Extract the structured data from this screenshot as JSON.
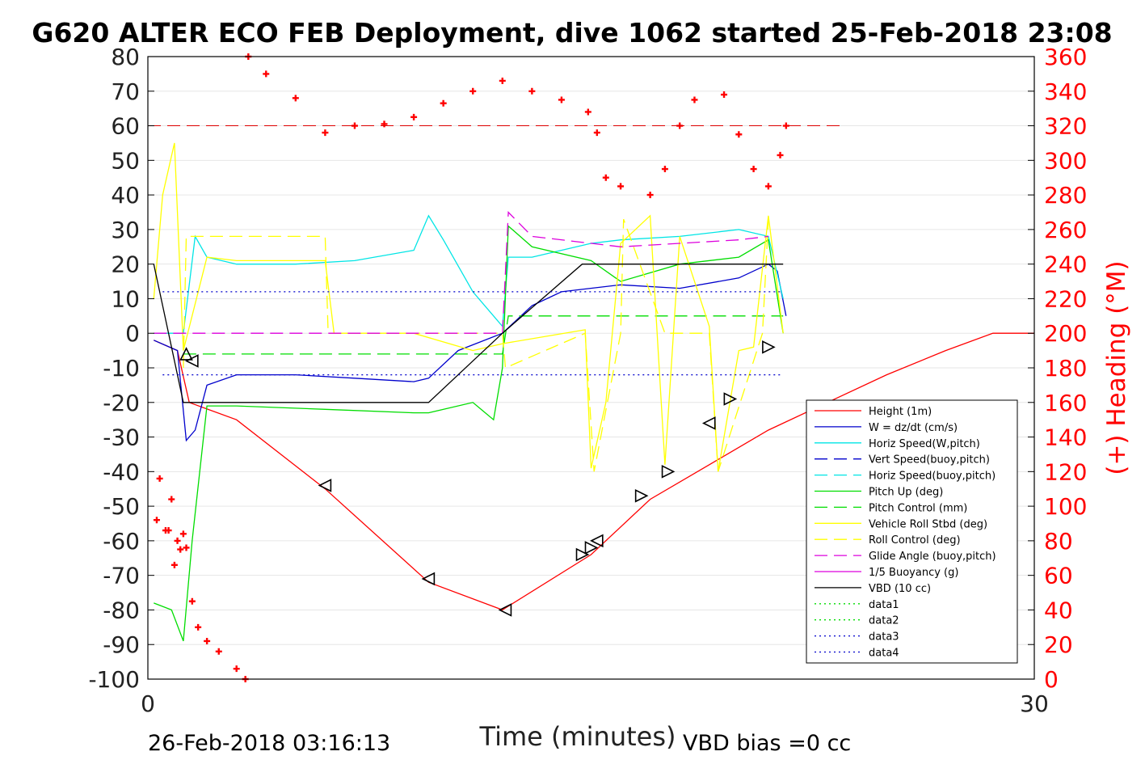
{
  "chart_data": {
    "type": "line",
    "title": "G620 ALTER ECO FEB Deployment, dive 1062 started 25-Feb-2018 23:08",
    "xlabel": "Time (minutes)",
    "ylabel_right": "(+) Heading (°M)",
    "xlim": [
      0,
      30
    ],
    "ylim": [
      -100,
      80
    ],
    "ylim_right": [
      0,
      360
    ],
    "x_ticks": [
      "0",
      "30"
    ],
    "y_ticks": [
      "80",
      "70",
      "60",
      "50",
      "40",
      "30",
      "20",
      "10",
      "0",
      "-10",
      "-20",
      "-30",
      "-40",
      "-50",
      "-60",
      "-70",
      "-80",
      "-90",
      "-100"
    ],
    "y_ticks_right": [
      "360",
      "340",
      "320",
      "300",
      "280",
      "260",
      "240",
      "220",
      "200",
      "180",
      "160",
      "140",
      "120",
      "100",
      "80",
      "60",
      "40",
      "20",
      "0"
    ],
    "footer_left": "26-Feb-2018 03:16:13",
    "footer_right": "VBD bias =0 cc",
    "grid": true,
    "legend_position": "lower-right",
    "legend": [
      {
        "name": "Height (1m)",
        "color": "#ff0000",
        "dash": "solid"
      },
      {
        "name": "W = dz/dt (cm/s)",
        "color": "#0000cc",
        "dash": "solid"
      },
      {
        "name": "Horiz Speed(W,pitch)",
        "color": "#00e5e5",
        "dash": "solid"
      },
      {
        "name": "Vert Speed(buoy,pitch)",
        "color": "#0000cc",
        "dash": "dashed"
      },
      {
        "name": "Horiz Speed(buoy,pitch)",
        "color": "#00e5e5",
        "dash": "dashed"
      },
      {
        "name": "Pitch Up (deg)",
        "color": "#00dd00",
        "dash": "solid"
      },
      {
        "name": "Pitch Control (mm)",
        "color": "#00dd00",
        "dash": "dashed"
      },
      {
        "name": "Vehicle Roll Stbd (deg)",
        "color": "#ffff00",
        "dash": "solid"
      },
      {
        "name": "Roll Control (deg)",
        "color": "#ffff00",
        "dash": "dashed"
      },
      {
        "name": "Glide Angle (buoy,pitch)",
        "color": "#dd00dd",
        "dash": "dashed"
      },
      {
        "name": "1/5 Buoyancy (g)",
        "color": "#dd00dd",
        "dash": "solid"
      },
      {
        "name": "VBD (10 cc)",
        "color": "#000000",
        "dash": "solid"
      },
      {
        "name": "data1",
        "color": "#00dd00",
        "dash": "dotted"
      },
      {
        "name": "data2",
        "color": "#00dd00",
        "dash": "dotted"
      },
      {
        "name": "data3",
        "color": "#0000cc",
        "dash": "dotted"
      },
      {
        "name": "data4",
        "color": "#0000cc",
        "dash": "dotted"
      }
    ],
    "series": [
      {
        "name": "Height (1m)",
        "x": [
          0.2,
          1,
          1.4,
          3,
          6,
          9.5,
          12,
          15,
          17,
          19,
          21,
          23,
          25,
          27,
          28.6,
          30
        ],
        "y": [
          -2,
          -5,
          -20,
          -25,
          -45,
          -72,
          -80,
          -64,
          -48,
          -38,
          -28,
          -20,
          -12,
          -5,
          0,
          0
        ]
      },
      {
        "name": "W = dz/dt (cm/s)",
        "x": [
          0.2,
          1,
          1.3,
          1.6,
          2,
          3,
          5,
          7,
          9,
          9.5,
          10.5,
          12,
          13,
          14,
          16,
          18,
          20,
          21,
          21.3,
          21.6
        ],
        "y": [
          -2,
          -5,
          -31,
          -28,
          -15,
          -12,
          -12,
          -13,
          -14,
          -13,
          -5,
          0,
          8,
          12,
          14,
          13,
          16,
          20,
          18,
          5
        ]
      },
      {
        "name": "Horiz Speed(W,pitch)",
        "x": [
          0.2,
          1.2,
          1.6,
          2,
          3,
          5,
          7,
          9,
          9.5,
          10,
          11,
          12,
          12.2,
          13,
          15,
          16,
          18,
          20,
          21,
          21.5
        ],
        "y": [
          0,
          0,
          28,
          22,
          20,
          20,
          21,
          24,
          34,
          27,
          12,
          2,
          22,
          22,
          26,
          27,
          28,
          30,
          28,
          10
        ]
      },
      {
        "name": "Pitch Up (deg)",
        "x": [
          0.2,
          0.8,
          1.2,
          1.5,
          2,
          3,
          6,
          9,
          9.5,
          11,
          11.7,
          12,
          12.2,
          13,
          15,
          16,
          18,
          20,
          21,
          21.5
        ],
        "y": [
          -78,
          -80,
          -89,
          -60,
          -21,
          -21,
          -22,
          -23,
          -23,
          -20,
          -25,
          -10,
          31,
          25,
          21,
          15,
          20,
          22,
          27,
          0
        ]
      },
      {
        "name": "Pitch Control (mm)",
        "x": [
          1.2,
          12,
          12.2,
          21.5
        ],
        "y": [
          -6,
          -6,
          5,
          5
        ]
      },
      {
        "name": "Vehicle Roll Stbd (deg)",
        "x": [
          0.2,
          0.5,
          0.9,
          1.2,
          2,
          3,
          6,
          6.3,
          9,
          11,
          12,
          14.8,
          15,
          15.5,
          16,
          17,
          17.5,
          18,
          19,
          19.3,
          20,
          20.5,
          21,
          21.5
        ],
        "y": [
          10,
          40,
          55,
          -5,
          22,
          21,
          21,
          0,
          0,
          -5,
          -3,
          1,
          -39,
          -20,
          26,
          34,
          -38,
          28,
          2,
          -40,
          -5,
          -4,
          34,
          0
        ]
      },
      {
        "name": "Roll Control (deg)",
        "x": [
          1.2,
          1.3,
          6,
          6.1,
          12,
          12.1,
          14.8,
          15.1,
          16,
          16.1,
          17.5,
          17.6,
          19,
          19.3,
          20.8,
          21
        ],
        "y": [
          -10,
          28,
          28,
          0,
          0,
          -10,
          0,
          -40,
          0,
          33,
          0,
          0,
          0,
          -40,
          0,
          33
        ]
      },
      {
        "name": "Glide Angle (buoy,pitch)",
        "x": [
          0.2,
          12,
          12.2,
          13,
          16,
          18,
          20,
          21
        ],
        "y": [
          0,
          0,
          35,
          28,
          25,
          26,
          27,
          28
        ]
      },
      {
        "name": "VBD (10 cc)",
        "x": [
          0.2,
          1.2,
          6,
          9.5,
          12,
          14.7,
          21.5
        ],
        "y": [
          20,
          -20,
          -20,
          -20,
          0,
          20,
          20
        ]
      },
      {
        "name": "data3",
        "x": [
          0.5,
          21.5
        ],
        "y": [
          12,
          12
        ]
      },
      {
        "name": "data4",
        "x": [
          0.5,
          21.5
        ],
        "y": [
          -12,
          -12
        ]
      }
    ],
    "heading_points": [
      {
        "x": 0.4,
        "y": 116
      },
      {
        "x": 0.3,
        "y": 92
      },
      {
        "x": 0.6,
        "y": 86
      },
      {
        "x": 0.7,
        "y": 86
      },
      {
        "x": 0.8,
        "y": 104
      },
      {
        "x": 0.9,
        "y": 66
      },
      {
        "x": 1.0,
        "y": 80
      },
      {
        "x": 1.1,
        "y": 75
      },
      {
        "x": 1.2,
        "y": 84
      },
      {
        "x": 1.3,
        "y": 76
      },
      {
        "x": 1.5,
        "y": 45
      },
      {
        "x": 1.7,
        "y": 30
      },
      {
        "x": 2.0,
        "y": 22
      },
      {
        "x": 2.4,
        "y": 16
      },
      {
        "x": 3.0,
        "y": 6
      },
      {
        "x": 3.3,
        "y": 0
      },
      {
        "x": 3.4,
        "y": 360
      },
      {
        "x": 4.0,
        "y": 350
      },
      {
        "x": 5.0,
        "y": 336
      },
      {
        "x": 6.0,
        "y": 316
      },
      {
        "x": 7.0,
        "y": 320
      },
      {
        "x": 8.0,
        "y": 321
      },
      {
        "x": 9.0,
        "y": 325
      },
      {
        "x": 10.0,
        "y": 333
      },
      {
        "x": 11.0,
        "y": 340
      },
      {
        "x": 12.0,
        "y": 346
      },
      {
        "x": 13.0,
        "y": 340
      },
      {
        "x": 14.0,
        "y": 335
      },
      {
        "x": 14.9,
        "y": 328
      },
      {
        "x": 15.2,
        "y": 316
      },
      {
        "x": 15.5,
        "y": 290
      },
      {
        "x": 16.0,
        "y": 285
      },
      {
        "x": 17.0,
        "y": 280
      },
      {
        "x": 17.5,
        "y": 295
      },
      {
        "x": 18.0,
        "y": 320
      },
      {
        "x": 18.5,
        "y": 335
      },
      {
        "x": 19.5,
        "y": 338
      },
      {
        "x": 20.0,
        "y": 315
      },
      {
        "x": 20.5,
        "y": 295
      },
      {
        "x": 21.0,
        "y": 285
      },
      {
        "x": 21.4,
        "y": 303
      },
      {
        "x": 21.6,
        "y": 320
      }
    ],
    "triangles": [
      {
        "x": 1.3,
        "y": -6,
        "dir": "up"
      },
      {
        "x": 1.5,
        "y": -8,
        "dir": "left"
      },
      {
        "x": 6,
        "y": -44,
        "dir": "left"
      },
      {
        "x": 9.5,
        "y": -71,
        "dir": "left"
      },
      {
        "x": 12.1,
        "y": -80,
        "dir": "left"
      },
      {
        "x": 14.7,
        "y": -64,
        "dir": "right"
      },
      {
        "x": 15,
        "y": -62,
        "dir": "right"
      },
      {
        "x": 15.2,
        "y": -60,
        "dir": "left"
      },
      {
        "x": 16.7,
        "y": -47,
        "dir": "right"
      },
      {
        "x": 17.6,
        "y": -40,
        "dir": "right"
      },
      {
        "x": 19,
        "y": -26,
        "dir": "left"
      },
      {
        "x": 19.7,
        "y": -19,
        "dir": "right"
      },
      {
        "x": 21,
        "y": -4,
        "dir": "right"
      }
    ]
  }
}
